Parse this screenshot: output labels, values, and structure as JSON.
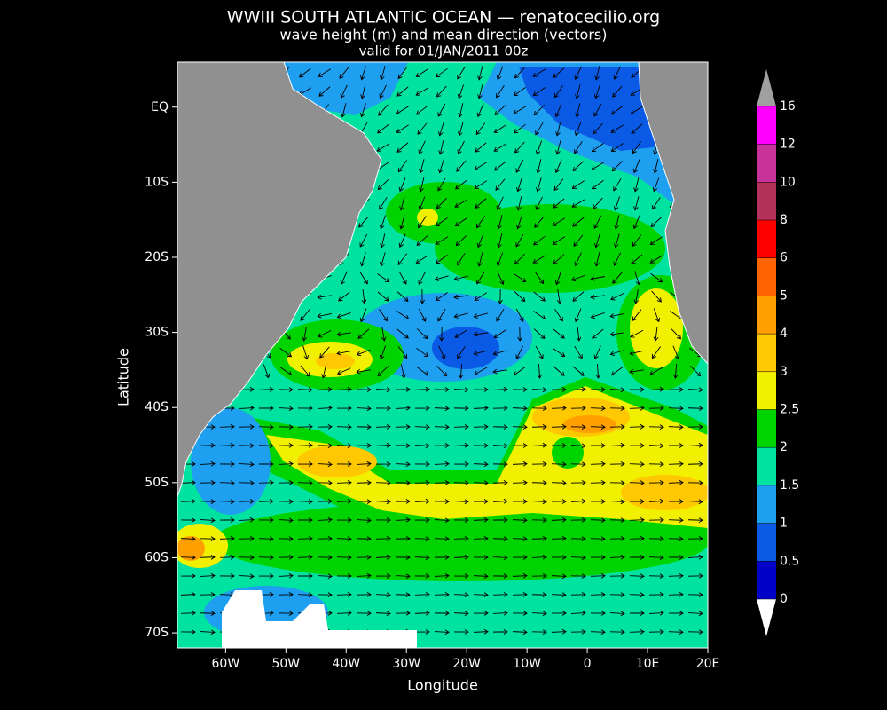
{
  "header": {
    "title": "WWIII SOUTH ATLANTIC OCEAN — renatocecilio.org",
    "subtitle": "wave height (m) and mean direction (vectors)",
    "valid": "valid for 01/JAN/2011 00z"
  },
  "map": {
    "xlabel": "Longitude",
    "ylabel": "Latitude",
    "xlim": [
      -68,
      20
    ],
    "ylim": [
      -72,
      6
    ],
    "xticks": [
      {
        "value": -60,
        "label": "60W"
      },
      {
        "value": -50,
        "label": "50W"
      },
      {
        "value": -40,
        "label": "40W"
      },
      {
        "value": -30,
        "label": "30W"
      },
      {
        "value": -20,
        "label": "20W"
      },
      {
        "value": -10,
        "label": "10W"
      },
      0,
      {
        "value": 10,
        "label": "10E"
      },
      {
        "value": 20,
        "label": "20E"
      }
    ],
    "yticks": [
      {
        "value": 0,
        "label": "EQ"
      },
      {
        "value": -10,
        "label": "10S"
      },
      {
        "value": -20,
        "label": "20S"
      },
      {
        "value": -30,
        "label": "30S"
      },
      {
        "value": -40,
        "label": "40S"
      },
      {
        "value": -50,
        "label": "50S"
      },
      {
        "value": -60,
        "label": "60S"
      },
      {
        "value": -70,
        "label": "70S"
      }
    ]
  },
  "colorbar": {
    "levels": [
      0,
      0.5,
      1,
      1.5,
      2,
      2.5,
      3,
      4,
      5,
      6,
      8,
      10,
      12,
      16
    ],
    "colors": [
      "#0000c8",
      "#0a5ae6",
      "#1e9ff0",
      "#00e2a0",
      "#00d400",
      "#f0f000",
      "#ffc800",
      "#ffa000",
      "#ff6400",
      "#ff0000",
      "#b4325a",
      "#c8329b",
      "#ff00ff"
    ]
  }
}
